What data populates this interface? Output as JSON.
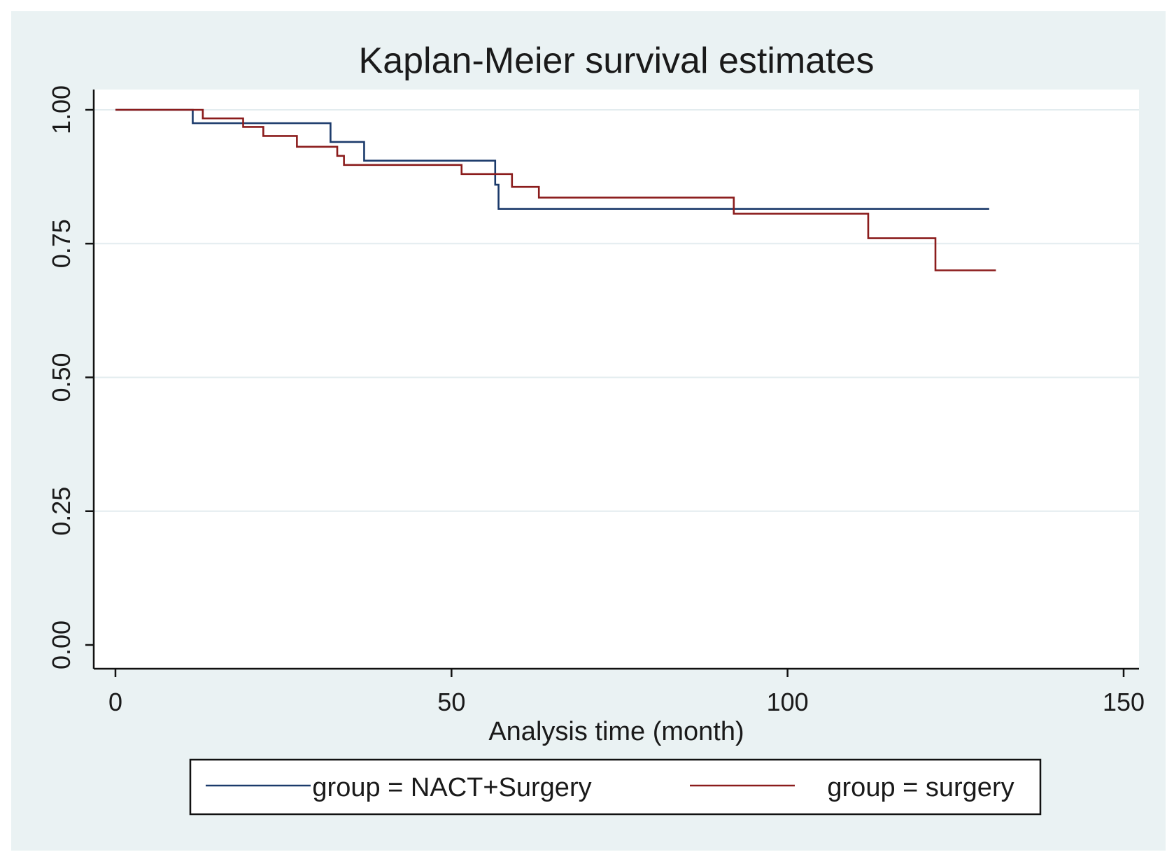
{
  "chart_data": {
    "type": "line",
    "title": "Kaplan-Meier survival estimates",
    "xlabel": "Analysis time (month)",
    "ylabel": "",
    "xlim": [
      0,
      150
    ],
    "ylim": [
      0,
      1
    ],
    "xticks": [
      "0",
      "50",
      "100",
      "150"
    ],
    "yticks": [
      "0.00",
      "0.25",
      "0.50",
      "0.75",
      "1.00"
    ],
    "xtick_values": [
      0,
      50,
      100,
      150
    ],
    "ytick_values": [
      0,
      0.25,
      0.5,
      0.75,
      1.0
    ],
    "grid": "horizontal",
    "legend_position": "bottom",
    "step": true,
    "series": [
      {
        "name": "group = NACT+Surgery",
        "color": "#1b3a6b",
        "x": [
          0,
          11.5,
          32,
          37,
          56.5,
          57,
          100,
          130
        ],
        "y": [
          1.0,
          0.975,
          0.94,
          0.905,
          0.86,
          0.815,
          0.815,
          0.815
        ]
      },
      {
        "name": "group = surgery",
        "color": "#8b1c1c",
        "x": [
          0,
          13,
          19,
          22,
          27,
          33,
          34,
          51.5,
          59,
          63,
          92,
          112,
          122,
          131
        ],
        "y": [
          1.0,
          0.984,
          0.968,
          0.951,
          0.931,
          0.914,
          0.897,
          0.88,
          0.856,
          0.836,
          0.806,
          0.76,
          0.7,
          0.7
        ]
      }
    ]
  }
}
